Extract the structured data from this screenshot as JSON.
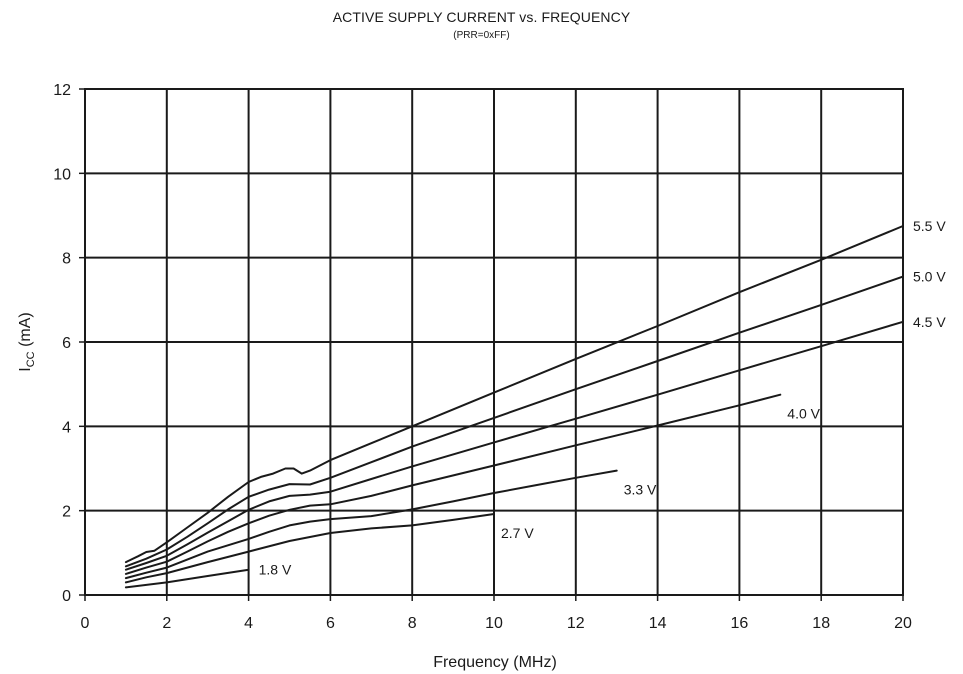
{
  "chart_data": {
    "type": "line",
    "title": "ACTIVE SUPPLY CURRENT vs. FREQUENCY",
    "subtitle": "(PRR=0xFF)",
    "xlabel": "Frequency (MHz)",
    "ylabel_main": "I",
    "ylabel_sub": "CC",
    "ylabel_unit": " (mA)",
    "xlim": [
      0,
      20
    ],
    "ylim": [
      0,
      12
    ],
    "xticks": [
      0,
      2,
      4,
      6,
      8,
      10,
      12,
      14,
      16,
      18,
      20
    ],
    "yticks": [
      0,
      2,
      4,
      6,
      8,
      10,
      12
    ],
    "grid": true,
    "colors": {
      "line": "#1a1a1a",
      "grid": "#1a1a1a",
      "background": "#ffffff"
    },
    "series": [
      {
        "name": "5.5 V",
        "label_anchor": "right",
        "points": [
          [
            1,
            0.78
          ],
          [
            1.3,
            0.92
          ],
          [
            1.5,
            1.02
          ],
          [
            1.7,
            1.05
          ],
          [
            2,
            1.25
          ],
          [
            2.5,
            1.6
          ],
          [
            3,
            1.95
          ],
          [
            3.5,
            2.33
          ],
          [
            4,
            2.68
          ],
          [
            4.3,
            2.8
          ],
          [
            4.6,
            2.88
          ],
          [
            4.9,
            3.0
          ],
          [
            5.1,
            3.0
          ],
          [
            5.3,
            2.88
          ],
          [
            5.5,
            2.95
          ],
          [
            6,
            3.2
          ],
          [
            7,
            3.6
          ],
          [
            8,
            4.0
          ],
          [
            10,
            4.8
          ],
          [
            12,
            5.6
          ],
          [
            14,
            6.38
          ],
          [
            16,
            7.18
          ],
          [
            18,
            7.95
          ],
          [
            20,
            8.75
          ]
        ]
      },
      {
        "name": "5.0 V",
        "label_anchor": "right",
        "points": [
          [
            1,
            0.68
          ],
          [
            1.5,
            0.86
          ],
          [
            2,
            1.08
          ],
          [
            2.5,
            1.38
          ],
          [
            3,
            1.7
          ],
          [
            3.5,
            2.03
          ],
          [
            4,
            2.33
          ],
          [
            4.5,
            2.5
          ],
          [
            5,
            2.63
          ],
          [
            5.5,
            2.62
          ],
          [
            6,
            2.78
          ],
          [
            7,
            3.15
          ],
          [
            8,
            3.52
          ],
          [
            10,
            4.2
          ],
          [
            12,
            4.88
          ],
          [
            14,
            5.55
          ],
          [
            16,
            6.22
          ],
          [
            18,
            6.88
          ],
          [
            20,
            7.55
          ]
        ]
      },
      {
        "name": "4.5 V",
        "label_anchor": "right",
        "points": [
          [
            1,
            0.6
          ],
          [
            1.5,
            0.76
          ],
          [
            2,
            0.93
          ],
          [
            2.5,
            1.2
          ],
          [
            3,
            1.48
          ],
          [
            3.5,
            1.75
          ],
          [
            4,
            2.02
          ],
          [
            4.5,
            2.22
          ],
          [
            5,
            2.35
          ],
          [
            5.5,
            2.38
          ],
          [
            6,
            2.45
          ],
          [
            7,
            2.75
          ],
          [
            8,
            3.05
          ],
          [
            10,
            3.62
          ],
          [
            12,
            4.18
          ],
          [
            14,
            4.75
          ],
          [
            16,
            5.33
          ],
          [
            18,
            5.9
          ],
          [
            20,
            6.48
          ]
        ]
      },
      {
        "name": "4.0 V",
        "label_anchor": "below",
        "points": [
          [
            1,
            0.5
          ],
          [
            1.5,
            0.65
          ],
          [
            2,
            0.79
          ],
          [
            2.5,
            1.03
          ],
          [
            3,
            1.27
          ],
          [
            3.5,
            1.5
          ],
          [
            4,
            1.7
          ],
          [
            4.5,
            1.88
          ],
          [
            5,
            2.02
          ],
          [
            5.5,
            2.12
          ],
          [
            6,
            2.15
          ],
          [
            7,
            2.35
          ],
          [
            8,
            2.6
          ],
          [
            10,
            3.07
          ],
          [
            12,
            3.55
          ],
          [
            14,
            4.02
          ],
          [
            16,
            4.5
          ],
          [
            17,
            4.75
          ]
        ]
      },
      {
        "name": "3.3 V",
        "label_anchor": "below",
        "points": [
          [
            1,
            0.4
          ],
          [
            1.5,
            0.53
          ],
          [
            2,
            0.65
          ],
          [
            3,
            1.03
          ],
          [
            4,
            1.33
          ],
          [
            4.5,
            1.5
          ],
          [
            5,
            1.65
          ],
          [
            5.5,
            1.74
          ],
          [
            6,
            1.8
          ],
          [
            7,
            1.87
          ],
          [
            8,
            2.03
          ],
          [
            9,
            2.22
          ],
          [
            10,
            2.42
          ],
          [
            11,
            2.6
          ],
          [
            12,
            2.78
          ],
          [
            13,
            2.95
          ]
        ]
      },
      {
        "name": "2.7 V",
        "label_anchor": "below",
        "points": [
          [
            1,
            0.3
          ],
          [
            1.5,
            0.42
          ],
          [
            2,
            0.52
          ],
          [
            3,
            0.78
          ],
          [
            4,
            1.03
          ],
          [
            5,
            1.28
          ],
          [
            6,
            1.47
          ],
          [
            7,
            1.58
          ],
          [
            8,
            1.65
          ],
          [
            9,
            1.78
          ],
          [
            10,
            1.92
          ]
        ]
      },
      {
        "name": "1.8 V",
        "label_anchor": "right",
        "points": [
          [
            1,
            0.18
          ],
          [
            2,
            0.3
          ],
          [
            3,
            0.45
          ],
          [
            4,
            0.6
          ]
        ]
      }
    ]
  }
}
